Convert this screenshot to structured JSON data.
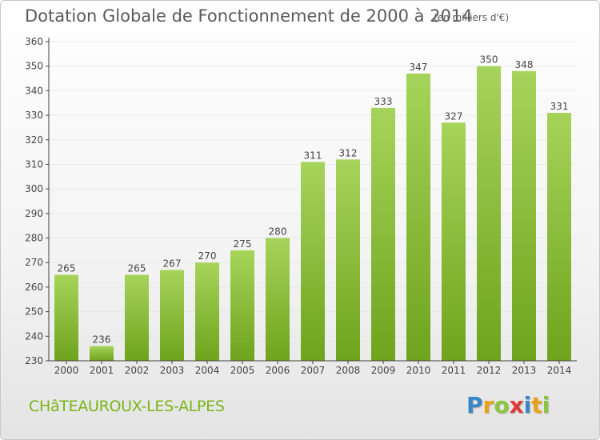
{
  "header": {
    "title": "Dotation Globale de Fonctionnement de 2000 à 2014",
    "subtitle": "(en milliers d'€)"
  },
  "footer": {
    "commune": "CHâTEAUROUX-LES-ALPES",
    "logo_letters": [
      "P",
      "r",
      "o",
      "x",
      "i",
      "t",
      "i"
    ],
    "logo_colors": [
      "#3a86c8",
      "#e8a317",
      "#8cc63f",
      "#e03a3a",
      "#3a86c8",
      "#e8a317",
      "#8cc63f"
    ]
  },
  "colors": {
    "bar_light": "#a6d45a",
    "bar_dark": "#6fa31d",
    "axis": "#444444",
    "grid": "#dddddd",
    "text": "#444444"
  },
  "chart_data": {
    "type": "bar",
    "categories": [
      "2000",
      "2001",
      "2002",
      "2003",
      "2004",
      "2005",
      "2006",
      "2007",
      "2008",
      "2009",
      "2010",
      "2011",
      "2012",
      "2013",
      "2014"
    ],
    "values": [
      265,
      236,
      265,
      267,
      270,
      275,
      280,
      311,
      312,
      333,
      347,
      327,
      350,
      348,
      331
    ],
    "ylim": [
      230,
      360
    ],
    "yticks": [
      230,
      240,
      250,
      260,
      270,
      280,
      290,
      300,
      310,
      320,
      330,
      340,
      350,
      360
    ],
    "grid": true
  }
}
